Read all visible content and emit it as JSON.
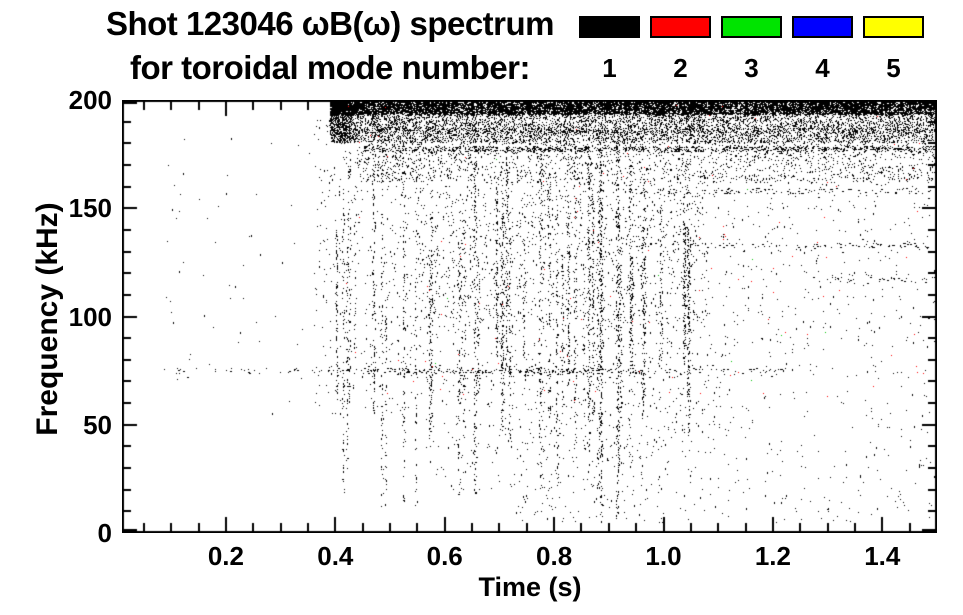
{
  "title": {
    "line1": "Shot 123046 ωB(ω) spectrum",
    "line2": "for toroidal mode number:"
  },
  "legend": {
    "items": [
      {
        "label": "1",
        "color": "#000000"
      },
      {
        "label": "2",
        "color": "#ff0000"
      },
      {
        "label": "3",
        "color": "#00e400"
      },
      {
        "label": "4",
        "color": "#0000ff"
      },
      {
        "label": "5",
        "color": "#ffff00"
      }
    ]
  },
  "chart_data": {
    "type": "scatter",
    "title": "Shot 123046 ωB(ω) spectrum",
    "subtitle": "for toroidal mode number: 1 2 3 4 5",
    "xlabel": "Time (s)",
    "ylabel": "Frequency (kHz)",
    "xlim": [
      0.01,
      1.5
    ],
    "ylim": [
      0,
      200
    ],
    "x_major_ticks": [
      0.2,
      0.4,
      0.6,
      0.8,
      1.0,
      1.2,
      1.4
    ],
    "x_tick_labels": [
      "0.2",
      "0.4",
      "0.6",
      "0.8",
      "1.0",
      "1.2",
      "1.4"
    ],
    "x_minor_step": 0.05,
    "y_major_ticks": [
      0,
      50,
      100,
      150,
      200
    ],
    "y_tick_labels": [
      "0",
      "50",
      "100",
      "150",
      "200"
    ],
    "y_minor_step": 10,
    "grid": false,
    "legend_position": "top-right",
    "point_color_default": "#000000",
    "seed": 123046,
    "bands": [
      {
        "name": "top-edge-solid",
        "t": [
          0.44,
          1.5
        ],
        "f": [
          193.5,
          200.0
        ],
        "n": 9000,
        "size": 2,
        "ramp_in": 0.05
      },
      {
        "name": "upper-dense",
        "t": [
          0.43,
          1.5
        ],
        "f": [
          180.5,
          193.5
        ],
        "n": 5200,
        "size": 1,
        "ramp_in": 0.04
      },
      {
        "name": "upper-mid",
        "t": [
          0.44,
          1.5
        ],
        "f": [
          162.0,
          180.5
        ],
        "n": 1750,
        "size": 1
      },
      {
        "name": "mid",
        "t": [
          0.55,
          1.08
        ],
        "f": [
          95.0,
          162.0
        ],
        "n": 1250,
        "size": 1
      },
      {
        "name": "mid-right-sparse",
        "t": [
          1.08,
          1.5
        ],
        "f": [
          95.0,
          162.0
        ],
        "n": 260,
        "size": 1
      },
      {
        "name": "low",
        "t": [
          0.72,
          1.12
        ],
        "f": [
          5.0,
          95.0
        ],
        "n": 600,
        "size": 1
      },
      {
        "name": "low-right-sparse",
        "t": [
          1.12,
          1.5
        ],
        "f": [
          5.0,
          95.0
        ],
        "n": 230,
        "size": 1
      },
      {
        "name": "onset-column-zone",
        "t": [
          0.36,
          0.56
        ],
        "f": [
          55.0,
          193.0
        ],
        "n": 420,
        "size": 1
      },
      {
        "name": "early-isolated",
        "t": [
          0.08,
          0.36
        ],
        "f": [
          55.0,
          185.0
        ],
        "n": 55,
        "size": 1
      },
      {
        "name": "pre-low",
        "t": [
          0.56,
          0.72
        ],
        "f": [
          20.0,
          95.0
        ],
        "n": 130,
        "size": 1
      }
    ],
    "h_lines": [
      {
        "f": 177.5,
        "t": [
          0.45,
          1.5
        ],
        "n": 800
      },
      {
        "f": 186.0,
        "t": [
          0.44,
          1.5
        ],
        "n": 500
      },
      {
        "f": 75.0,
        "t": [
          0.08,
          0.45
        ],
        "n": 40
      },
      {
        "f": 75.0,
        "t": [
          0.45,
          0.97
        ],
        "n": 230
      },
      {
        "f": 75.0,
        "t": [
          0.97,
          1.22
        ],
        "n": 45
      },
      {
        "f": 158.0,
        "t": [
          0.93,
          1.5
        ],
        "n": 140
      },
      {
        "f": 133.0,
        "t": [
          0.85,
          1.5
        ],
        "n": 110
      },
      {
        "f": 117.0,
        "t": [
          1.25,
          1.5
        ],
        "n": 35
      }
    ],
    "streaks": {
      "count": 42,
      "t": [
        0.38,
        1.06
      ],
      "f_low": [
        8,
        85
      ],
      "f_high": [
        128,
        190
      ],
      "n": [
        25,
        90
      ]
    },
    "strong_streaks": [
      {
        "t": 0.425,
        "f": [
          60,
          192
        ],
        "n": 70
      },
      {
        "t": 0.47,
        "f": [
          55,
          193
        ],
        "n": 100
      },
      {
        "t": 0.525,
        "f": [
          15,
          190
        ],
        "n": 90
      },
      {
        "t": 0.655,
        "f": [
          18,
          188
        ],
        "n": 130
      },
      {
        "t": 0.775,
        "f": [
          25,
          188
        ],
        "n": 110
      },
      {
        "t": 0.885,
        "f": [
          5,
          190
        ],
        "n": 170
      },
      {
        "t": 0.915,
        "f": [
          8,
          190
        ],
        "n": 150
      }
    ],
    "colored_points": [
      {
        "color": "#ff0000",
        "t": [
          0.4,
          1.5
        ],
        "f": [
          60,
          198
        ],
        "n": 110
      },
      {
        "color": "#00c000",
        "t": [
          0.5,
          1.35
        ],
        "f": [
          60,
          190
        ],
        "n": 10
      }
    ]
  }
}
